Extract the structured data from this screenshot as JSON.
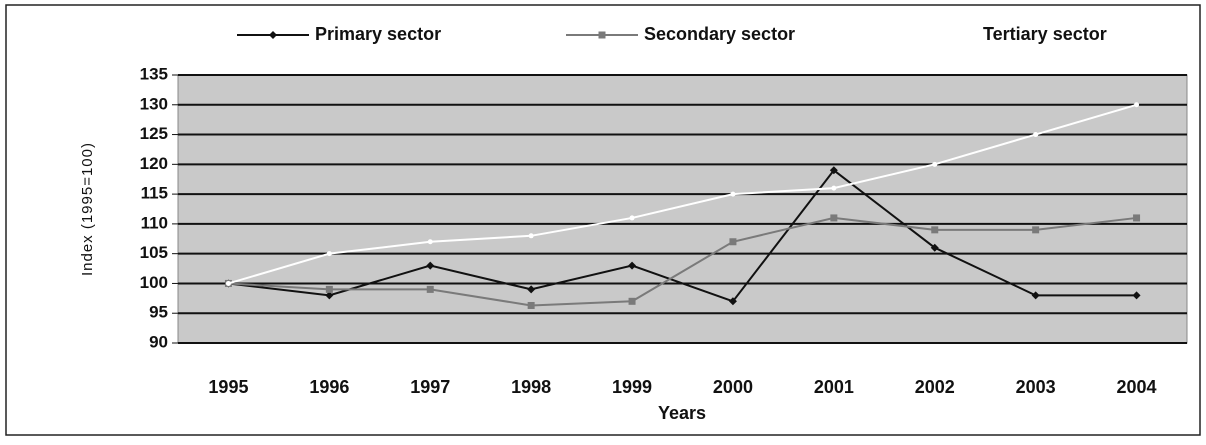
{
  "chart_data": {
    "type": "line",
    "categories": [
      "1995",
      "1996",
      "1997",
      "1998",
      "1999",
      "2000",
      "2001",
      "2002",
      "2003",
      "2004"
    ],
    "series": [
      {
        "name": "Primary sector",
        "color": "#111111",
        "values": [
          100,
          98,
          103,
          99,
          103,
          97,
          119,
          106,
          98,
          98
        ]
      },
      {
        "name": "Secondary sector",
        "color": "#7a7a7a",
        "values": [
          100,
          99,
          99,
          96.3,
          97,
          107,
          111,
          109,
          109,
          111
        ]
      },
      {
        "name": "Tertiary sector",
        "color": "#ffffff",
        "values": [
          100,
          105,
          107,
          108,
          111,
          115,
          116,
          120,
          125,
          130
        ]
      }
    ],
    "ylim": [
      90,
      135
    ],
    "yticks": [
      90,
      95,
      100,
      105,
      110,
      115,
      120,
      125,
      130,
      135
    ],
    "y_label": "Index (1995=100)",
    "x_label": "Years",
    "grid": true,
    "legend": "top"
  }
}
